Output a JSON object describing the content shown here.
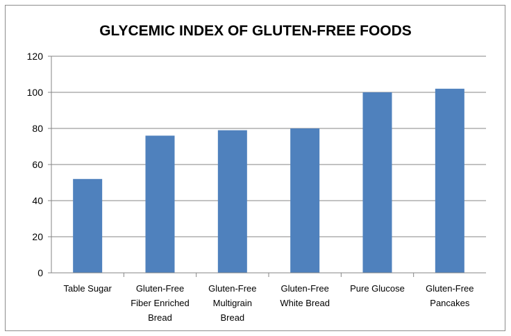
{
  "chart_data": {
    "type": "bar",
    "title": "GLYCEMIC INDEX OF GLUTEN-FREE FOODS",
    "xlabel": "",
    "ylabel": "",
    "categories": [
      [
        "Table Sugar"
      ],
      [
        "Gluten-Free",
        "Fiber Enriched",
        "Bread"
      ],
      [
        "Gluten-Free",
        "Multigrain",
        "Bread"
      ],
      [
        "Gluten-Free",
        "White Bread"
      ],
      [
        "Pure Glucose"
      ],
      [
        "Gluten-Free",
        "Pancakes"
      ]
    ],
    "values": [
      52,
      76,
      79,
      80,
      100,
      102
    ],
    "ylim": [
      0,
      120
    ],
    "yticks": [
      0,
      20,
      40,
      60,
      80,
      100,
      120
    ],
    "grid": true,
    "legend": "none",
    "colors": {
      "bar": "#4f81bd",
      "grid": "#868686",
      "axis": "#868686"
    }
  }
}
